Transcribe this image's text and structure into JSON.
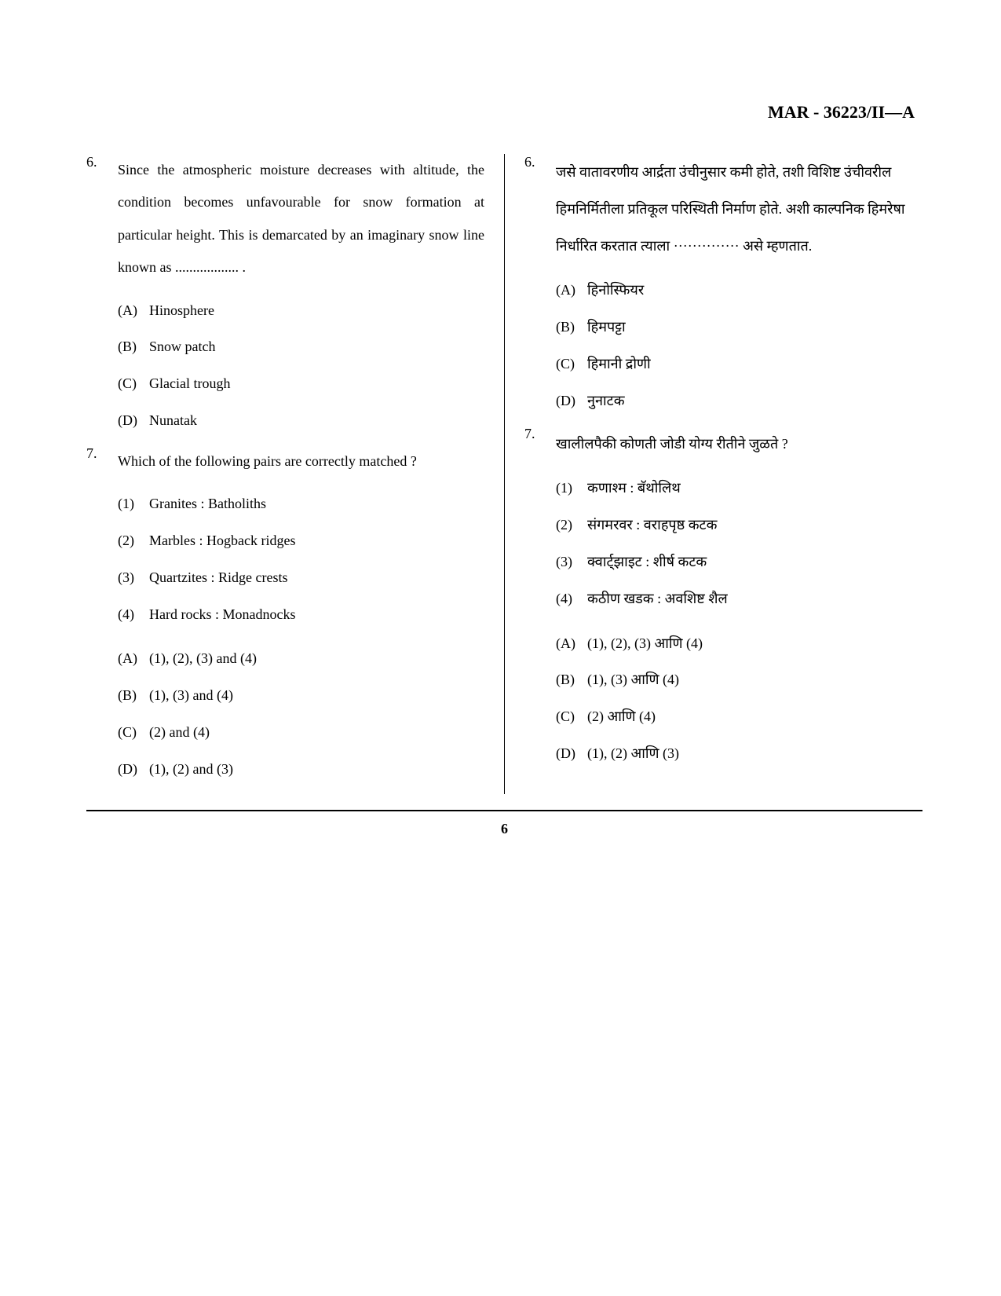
{
  "header": "MAR - 36223/II—A",
  "page_number": "6",
  "left": {
    "q6": {
      "num": "6.",
      "text": "Since the atmospheric moisture decreases with altitude, the condition becomes unfavourable for snow formation at particular height. This is demarcated by an imaginary snow line known as .................. .",
      "opts": {
        "A": {
          "label": "(A)",
          "text": "Hinosphere"
        },
        "B": {
          "label": "(B)",
          "text": "Snow patch"
        },
        "C": {
          "label": "(C)",
          "text": "Glacial trough"
        },
        "D": {
          "label": "(D)",
          "text": "Nunatak"
        }
      }
    },
    "q7": {
      "num": "7.",
      "text": "Which of the following pairs are correctly matched ?",
      "pairs": {
        "p1": {
          "label": "(1)",
          "text": "Granites : Batholiths"
        },
        "p2": {
          "label": "(2)",
          "text": "Marbles : Hogback ridges"
        },
        "p3": {
          "label": "(3)",
          "text": "Quartzites : Ridge crests"
        },
        "p4": {
          "label": "(4)",
          "text": "Hard rocks : Monadnocks"
        }
      },
      "opts": {
        "A": {
          "label": "(A)",
          "text": "(1), (2), (3) and (4)"
        },
        "B": {
          "label": "(B)",
          "text": "(1), (3) and (4)"
        },
        "C": {
          "label": "(C)",
          "text": "(2) and (4)"
        },
        "D": {
          "label": "(D)",
          "text": "(1), (2) and (3)"
        }
      }
    }
  },
  "right": {
    "q6": {
      "num": "6.",
      "text": "जसे वातावरणीय आर्द्रता उंचीनुसार कमी होते, तशी विशिष्ट उंचीवरील हिमनिर्मितीला प्रतिकूल परिस्थिती निर्माण होते. अशी काल्पनिक हिमरेषा निर्धारित करतात त्याला ·············· असे म्हणतात.",
      "opts": {
        "A": {
          "label": "(A)",
          "text": "हिनोस्फियर"
        },
        "B": {
          "label": "(B)",
          "text": "हिमपट्टा"
        },
        "C": {
          "label": "(C)",
          "text": "हिमानी द्रोणी"
        },
        "D": {
          "label": "(D)",
          "text": "नुनाटक"
        }
      }
    },
    "q7": {
      "num": "7.",
      "text": "खालीलपैकी कोणती जोडी योग्य रीतीने जुळते ?",
      "pairs": {
        "p1": {
          "label": "(1)",
          "text": "कणाश्म : बॅथोलिथ"
        },
        "p2": {
          "label": "(2)",
          "text": "संगमरवर : वराहपृष्ठ कटक"
        },
        "p3": {
          "label": "(3)",
          "text": "क्वार्ट्झाइट : शीर्ष कटक"
        },
        "p4": {
          "label": "(4)",
          "text": "कठीण खडक : अवशिष्ट शैल"
        }
      },
      "opts": {
        "A": {
          "label": "(A)",
          "text": "(1), (2), (3) आणि (4)"
        },
        "B": {
          "label": "(B)",
          "text": "(1), (3) आणि (4)"
        },
        "C": {
          "label": "(C)",
          "text": "(2) आणि (4)"
        },
        "D": {
          "label": "(D)",
          "text": "(1), (2) आणि (3)"
        }
      }
    }
  }
}
